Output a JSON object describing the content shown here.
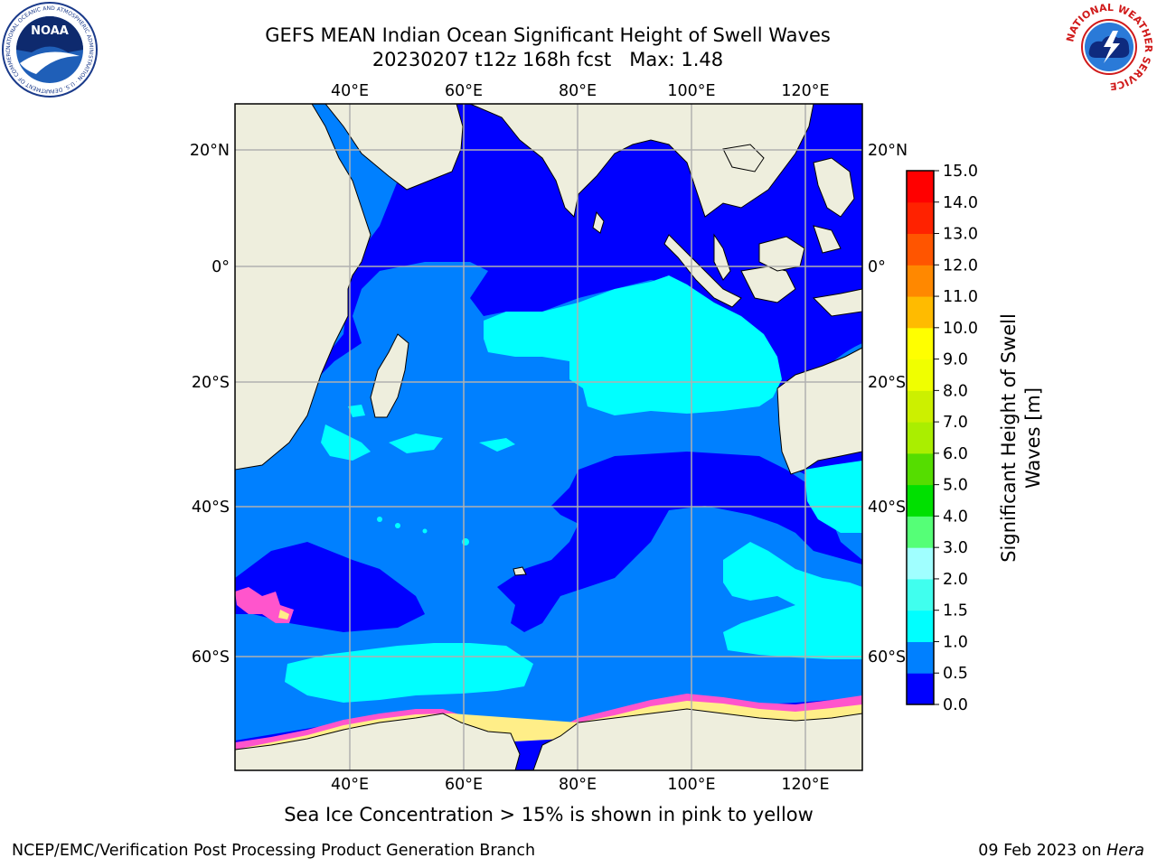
{
  "title": {
    "line1": "GEFS MEAN Indian Ocean Significant Height of Swell Waves",
    "line2": "20230207 t12z 168h fcst   Max: 1.48"
  },
  "map": {
    "lon_ticks": [
      "40°E",
      "60°E",
      "80°E",
      "100°E",
      "120°E"
    ],
    "lat_ticks": [
      "20°N",
      "0°",
      "20°S",
      "40°S",
      "60°S"
    ],
    "grid": true
  },
  "colorbar": {
    "label_line1": "Significant Height of Swell",
    "label_line2": "Waves [m]",
    "ticks": [
      "0.0",
      "0.5",
      "1.0",
      "1.5",
      "2.0",
      "3.0",
      "4.0",
      "5.0",
      "6.0",
      "7.0",
      "8.0",
      "9.0",
      "10.0",
      "11.0",
      "12.0",
      "13.0",
      "14.0",
      "15.0"
    ],
    "colors": [
      "#0000ff",
      "#0080ff",
      "#00ffff",
      "#40ffee",
      "#a0ffff",
      "#55ff77",
      "#00e000",
      "#55dd00",
      "#aaee00",
      "#ccf000",
      "#f0ff00",
      "#ffff00",
      "#ffbb00",
      "#ff8800",
      "#ff5500",
      "#ff2200",
      "#ff0000"
    ]
  },
  "palette": {
    "land": "#eeeedd",
    "sea_ice_pink": "#ff55cc",
    "sea_ice_yellow": "#ffee88"
  },
  "footer": {
    "note": "Sea Ice Concentration > 15% is shown in pink to yellow",
    "branch": "NCEP/EMC/Verification Post Processing Product Generation Branch",
    "date": "09 Feb 2023 on ",
    "host": "Hera"
  },
  "logos": {
    "left": "NOAA",
    "left_ring": "NATIONAL OCEANIC AND ATMOSPHERIC ADMINISTRATION · U.S. DEPARTMENT OF COMMERCE",
    "right_ring": "NATIONAL WEATHER SERVICE"
  }
}
